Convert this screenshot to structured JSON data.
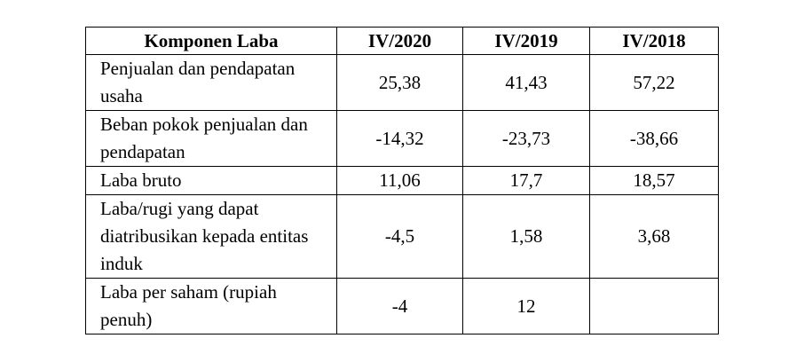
{
  "table": {
    "headers": [
      "Komponen Laba",
      "IV/2020",
      "IV/2019",
      "IV/2018"
    ],
    "rows": [
      {
        "label": "Penjualan dan pendapatan usaha",
        "values": [
          "25,38",
          "41,43",
          "57,22"
        ]
      },
      {
        "label": "Beban pokok penjualan dan pendapatan",
        "values": [
          "-14,32",
          "-23,73",
          "-38,66"
        ]
      },
      {
        "label": "Laba bruto",
        "values": [
          "11,06",
          "17,7",
          "18,57"
        ]
      },
      {
        "label": "Laba/rugi yang dapat diatribusikan kepada entitas induk",
        "values": [
          "-4,5",
          "1,58",
          "3,68"
        ]
      },
      {
        "label": "Laba per saham (rupiah penuh)",
        "values": [
          "-4",
          "12",
          ""
        ]
      }
    ]
  }
}
